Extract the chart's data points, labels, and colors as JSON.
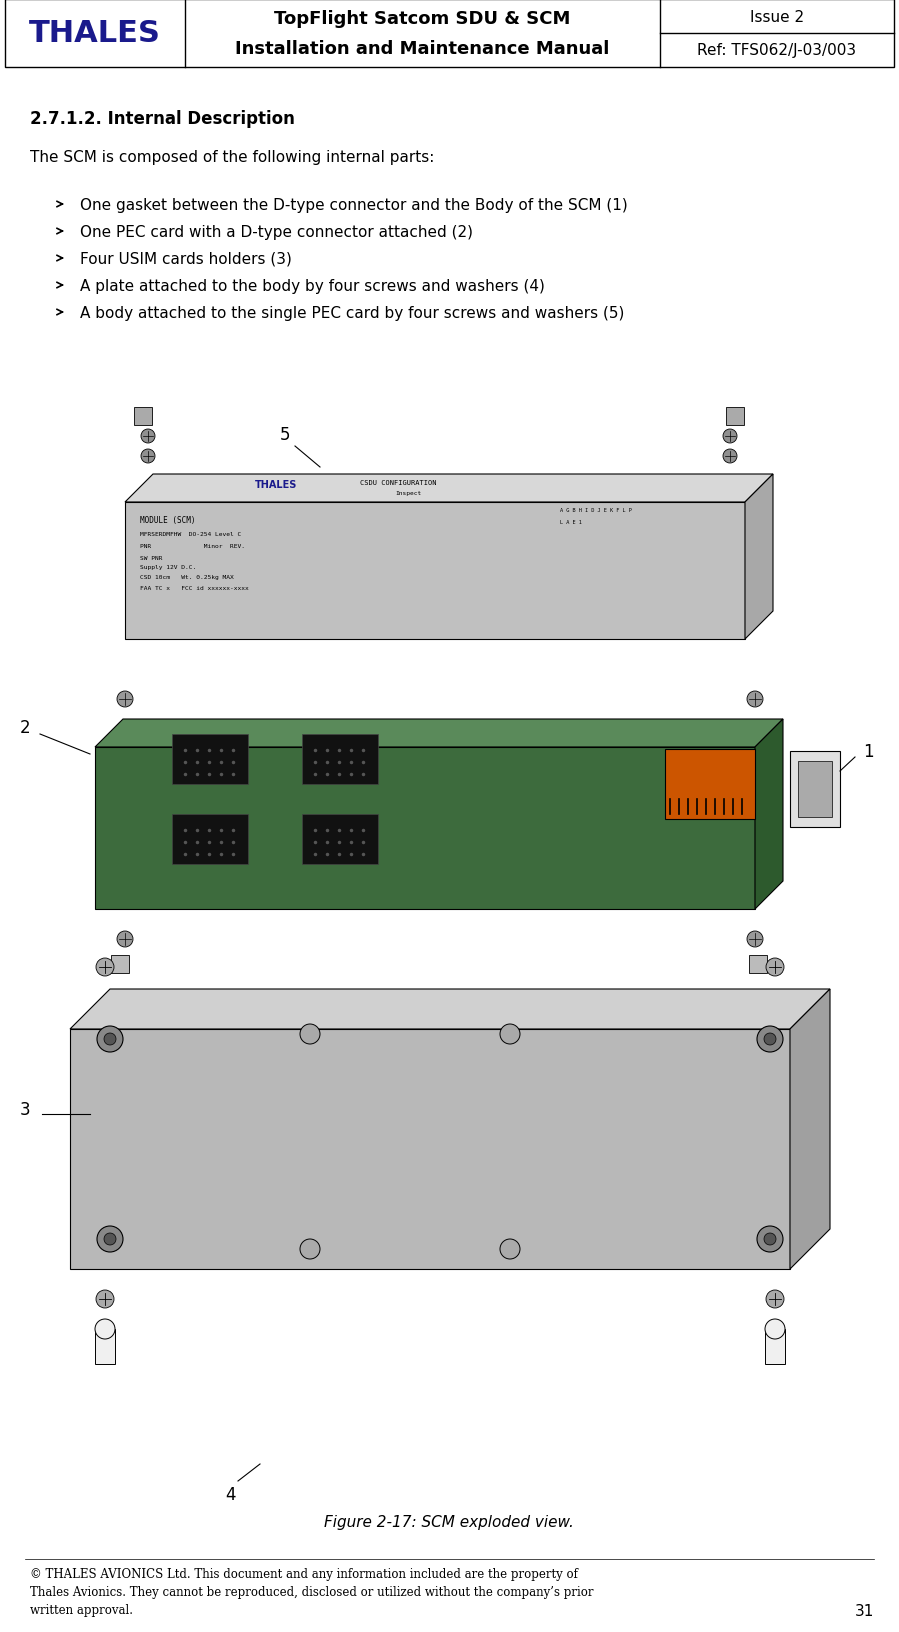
{
  "header": {
    "logo_text": "THALES",
    "logo_color": "#1a1a8c",
    "logo_accent": "#00aacc",
    "title_line1": "TopFlight Satcom SDU & SCM",
    "title_line2": "Installation and Maintenance Manual",
    "issue": "Issue 2",
    "ref": "Ref: TFS062/J-03/003"
  },
  "section_title": "2.7.1.2. Internal Description",
  "intro_text": "The SCM is composed of the following internal parts:",
  "bullet_points": [
    "One gasket between the D-type connector and the Body of the SCM (1)",
    "One PEC card with a D-type connector attached (2)",
    "Four USIM cards holders (3)",
    "A plate attached to the body by four screws and washers (4)",
    "A body attached to the single PEC card by four screws and washers (5)"
  ],
  "figure_caption": "Figure 2-17: SCM exploded view.",
  "footer_text": "© THALES AVIONICS Ltd. This document and any information included are the property of Thales Avionics. They cannot be reproduced, disclosed or utilized without the company’s prior written approval.",
  "page_number": "31",
  "bg_color": "#ffffff",
  "text_color": "#000000",
  "border_color": "#000000"
}
